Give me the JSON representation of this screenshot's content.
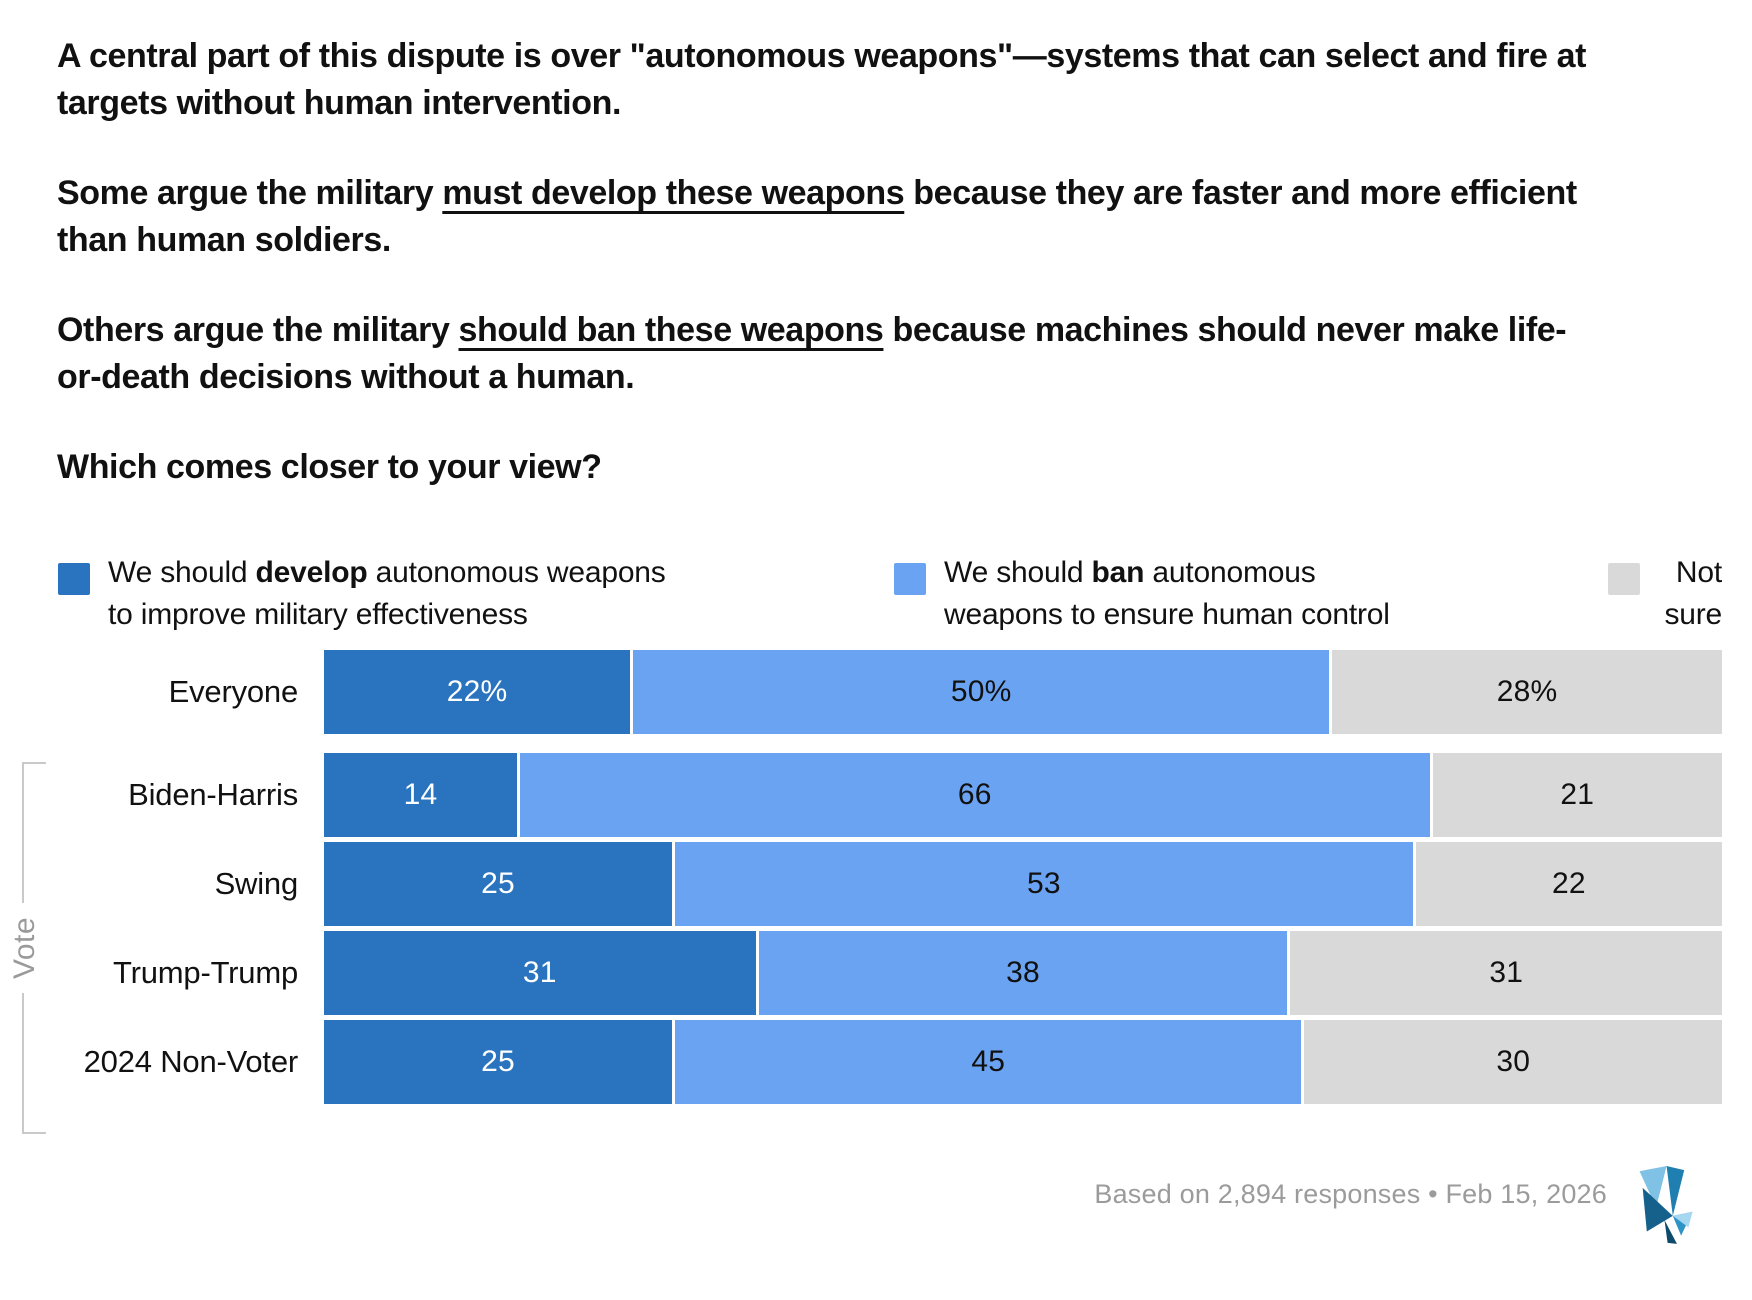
{
  "intro": {
    "p1": [
      {
        "t": "A central part of this dispute is over \"autonomous weapons\"—systems that can select and fire at",
        "br": true
      },
      {
        "t": "targets without human intervention."
      }
    ],
    "p2": [
      {
        "t": "Some argue the military "
      },
      {
        "t": "must develop these weapons",
        "u": true
      },
      {
        "t": " because they are faster and more efficient",
        "br": true
      },
      {
        "t": "than human soldiers."
      }
    ],
    "p3": [
      {
        "t": "Others argue the military "
      },
      {
        "t": "should ban these weapons",
        "u": true
      },
      {
        "t": " because machines should never make life-",
        "br": true
      },
      {
        "t": "or-death decisions without a human."
      }
    ],
    "question": [
      {
        "t": "Which comes closer to your view?"
      }
    ]
  },
  "colors": {
    "develop": "#2A74BF",
    "ban": "#6BA3F3",
    "notsure": "#D9D9D9",
    "text": "#111111",
    "muted_text": "#9B9B9B",
    "bracket": "#C9C9C9"
  },
  "legend": {
    "develop": [
      {
        "t": "We should "
      },
      {
        "t": "develop",
        "b": true
      },
      {
        "t": " autonomous weapons",
        "br": true
      },
      {
        "t": "to improve military effectiveness"
      }
    ],
    "ban": [
      {
        "t": "We should "
      },
      {
        "t": "ban",
        "b": true
      },
      {
        "t": " autonomous",
        "br": true
      },
      {
        "t": "weapons to ensure human control"
      }
    ],
    "notsure": [
      {
        "t": "Not",
        "br": true
      },
      {
        "t": "sure"
      }
    ]
  },
  "chart_data": {
    "type": "bar",
    "subtype": "horizontal-stacked-100pct",
    "title": "Which comes closer to your view?",
    "unit": "percent",
    "xlim": [
      0,
      100
    ],
    "legend_position": "top",
    "value_labels": "inside-center",
    "series": [
      "We should develop autonomous weapons to improve military effectiveness",
      "We should ban autonomous weapons to ensure human control",
      "Not sure"
    ],
    "categories": [
      "Everyone",
      "Biden-Harris",
      "Swing",
      "Trump-Trump",
      "2024 Non-Voter"
    ],
    "group_axis_label": "Vote",
    "grouped_categories": [
      "Biden-Harris",
      "Swing",
      "Trump-Trump",
      "2024 Non-Voter"
    ],
    "rows": [
      {
        "category": "Everyone",
        "values": [
          22,
          50,
          28
        ],
        "display": [
          "22%",
          "50%",
          "28%"
        ]
      },
      {
        "category": "Biden-Harris",
        "values": [
          14,
          66,
          21
        ],
        "display": [
          "14",
          "66",
          "21"
        ]
      },
      {
        "category": "Swing",
        "values": [
          25,
          53,
          22
        ],
        "display": [
          "25",
          "53",
          "22"
        ]
      },
      {
        "category": "Trump-Trump",
        "values": [
          31,
          38,
          31
        ],
        "display": [
          "31",
          "38",
          "31"
        ]
      },
      {
        "category": "2024 Non-Voter",
        "values": [
          25,
          45,
          30
        ],
        "display": [
          "25",
          "45",
          "30"
        ]
      }
    ]
  },
  "footer": {
    "attribution": "Based on 2,894 responses • Feb 15, 2026"
  }
}
